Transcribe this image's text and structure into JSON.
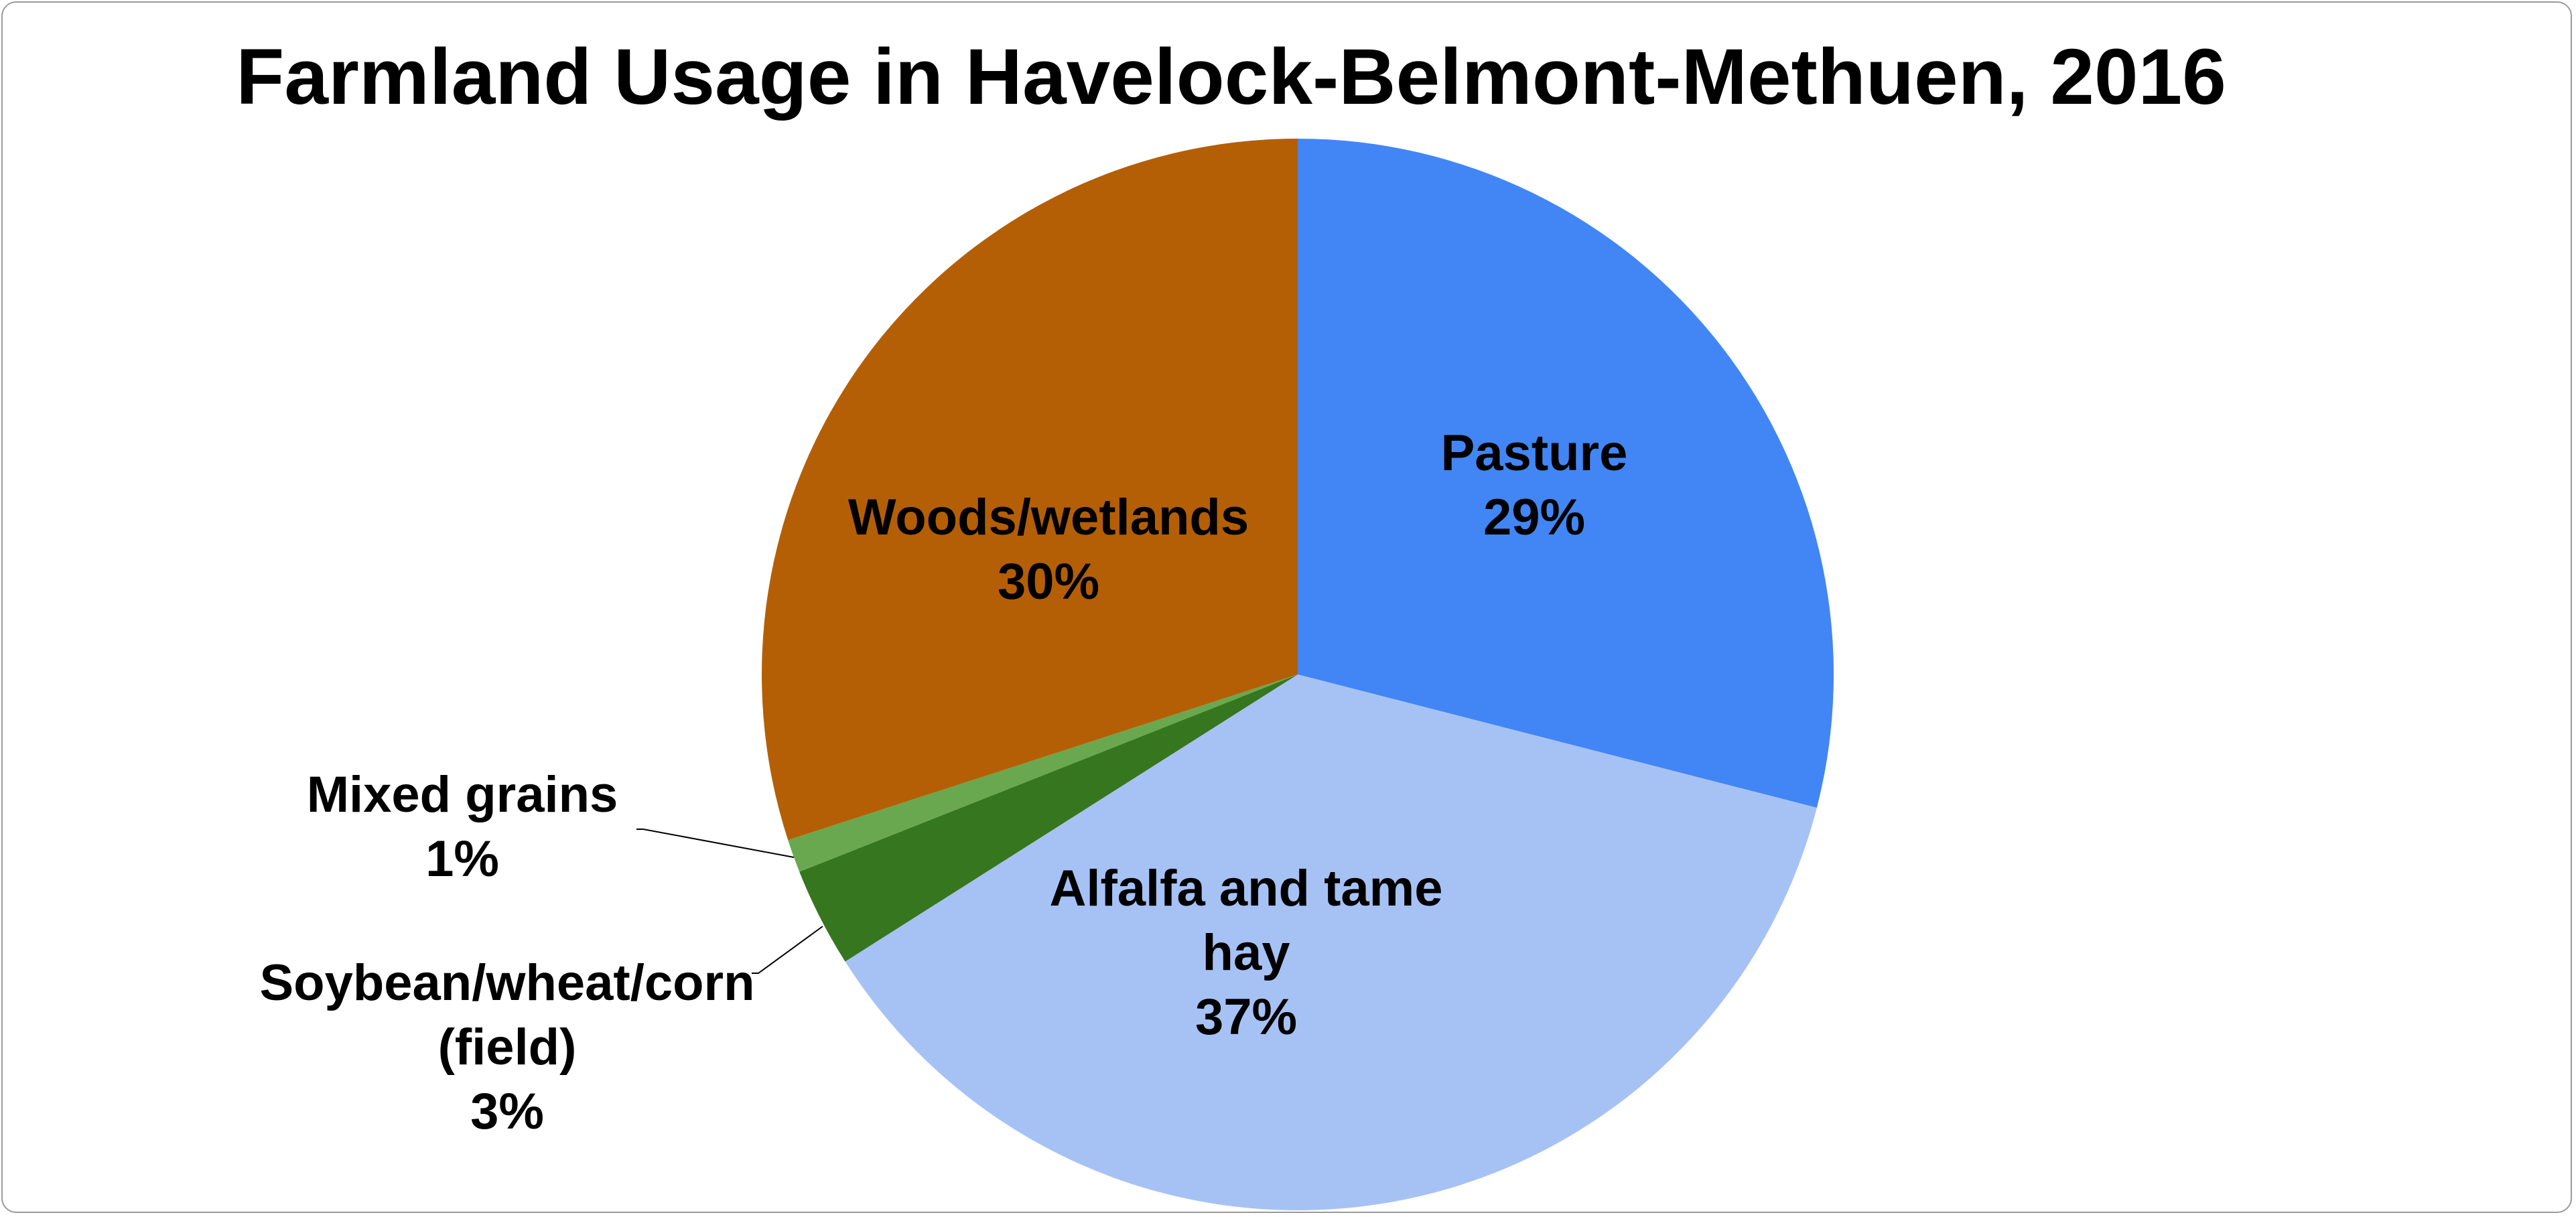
{
  "chart_data": {
    "type": "pie",
    "title": "Farmland Usage in Havelock-Belmont-Methuen, 2016",
    "slices": [
      {
        "label": "Pasture",
        "value_label": "29%",
        "value": 29,
        "color": "#4286F5"
      },
      {
        "label": "Alfalfa and tame hay",
        "value_label": "37%",
        "value": 37,
        "color": "#A6C2F5"
      },
      {
        "label": "Soybean/wheat/corn (field)",
        "value_label": "3%",
        "value": 3,
        "color": "#36761F"
      },
      {
        "label": "Mixed grains",
        "value_label": "1%",
        "value": 1,
        "color": "#6AA84F"
      },
      {
        "label": "Woods/wetlands",
        "value_label": "30%",
        "value": 30,
        "color": "#B45F06"
      }
    ],
    "legend": "none"
  }
}
